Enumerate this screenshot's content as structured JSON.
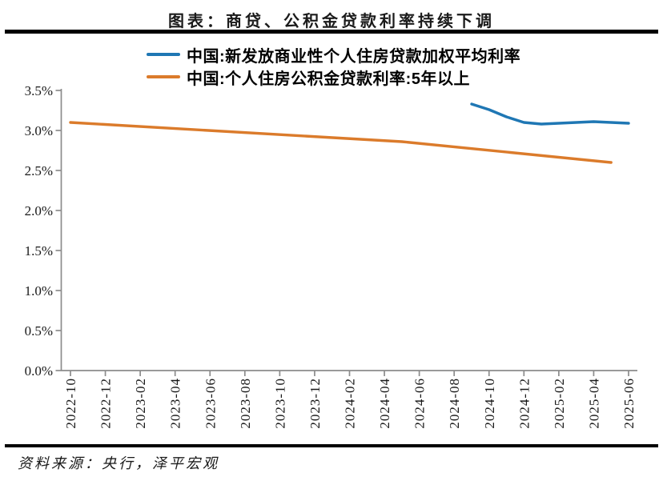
{
  "figure": {
    "title": "图表：商贷、公积金贷款利率持续下调",
    "source": "资料来源：央行，泽平宏观"
  },
  "legend": {
    "items": [
      {
        "label": "中国:新发放商业性个人住房贷款加权平均利率",
        "color": "#1F77B4"
      },
      {
        "label": "中国:个人住房公积金贷款利率:5年以上",
        "color": "#DB7B2B"
      }
    ]
  },
  "chart_data": {
    "type": "line",
    "title": "图表：商贷、公积金贷款利率持续下调",
    "xlabel": "",
    "ylabel": "",
    "ylim": [
      0,
      3.5
    ],
    "y_tick_labels": [
      "0.0%",
      "0.5%",
      "1.0%",
      "1.5%",
      "2.0%",
      "2.5%",
      "3.0%",
      "3.5%"
    ],
    "x_tick_labels": [
      "2022-10",
      "2022-12",
      "2023-02",
      "2023-04",
      "2023-06",
      "2023-08",
      "2023-10",
      "2023-12",
      "2024-02",
      "2024-04",
      "2024-06",
      "2024-08",
      "2024-10",
      "2024-12",
      "2025-02",
      "2025-04",
      "2025-06"
    ],
    "x_range_months": [
      "2022-10",
      "2025-06"
    ],
    "grid": false,
    "legend_position": "top",
    "axis_color": "#8c8c8c",
    "series": [
      {
        "name": "中国:新发放商业性个人住房贷款加权平均利率",
        "color": "#1F77B4",
        "unit": "%",
        "points": [
          [
            "2024-09",
            3.33
          ],
          [
            "2024-10",
            3.26
          ],
          [
            "2024-11",
            3.17
          ],
          [
            "2024-12",
            3.1
          ],
          [
            "2025-01",
            3.08
          ],
          [
            "2025-02",
            3.09
          ],
          [
            "2025-03",
            3.1
          ],
          [
            "2025-04",
            3.11
          ],
          [
            "2025-05",
            3.1
          ],
          [
            "2025-06",
            3.09
          ]
        ]
      },
      {
        "name": "中国:个人住房公积金贷款利率:5年以上",
        "color": "#DB7B2B",
        "unit": "%",
        "points": [
          [
            "2022-10",
            3.1
          ],
          [
            "2024-05",
            2.86
          ],
          [
            "2025-05",
            2.6
          ]
        ]
      }
    ]
  }
}
